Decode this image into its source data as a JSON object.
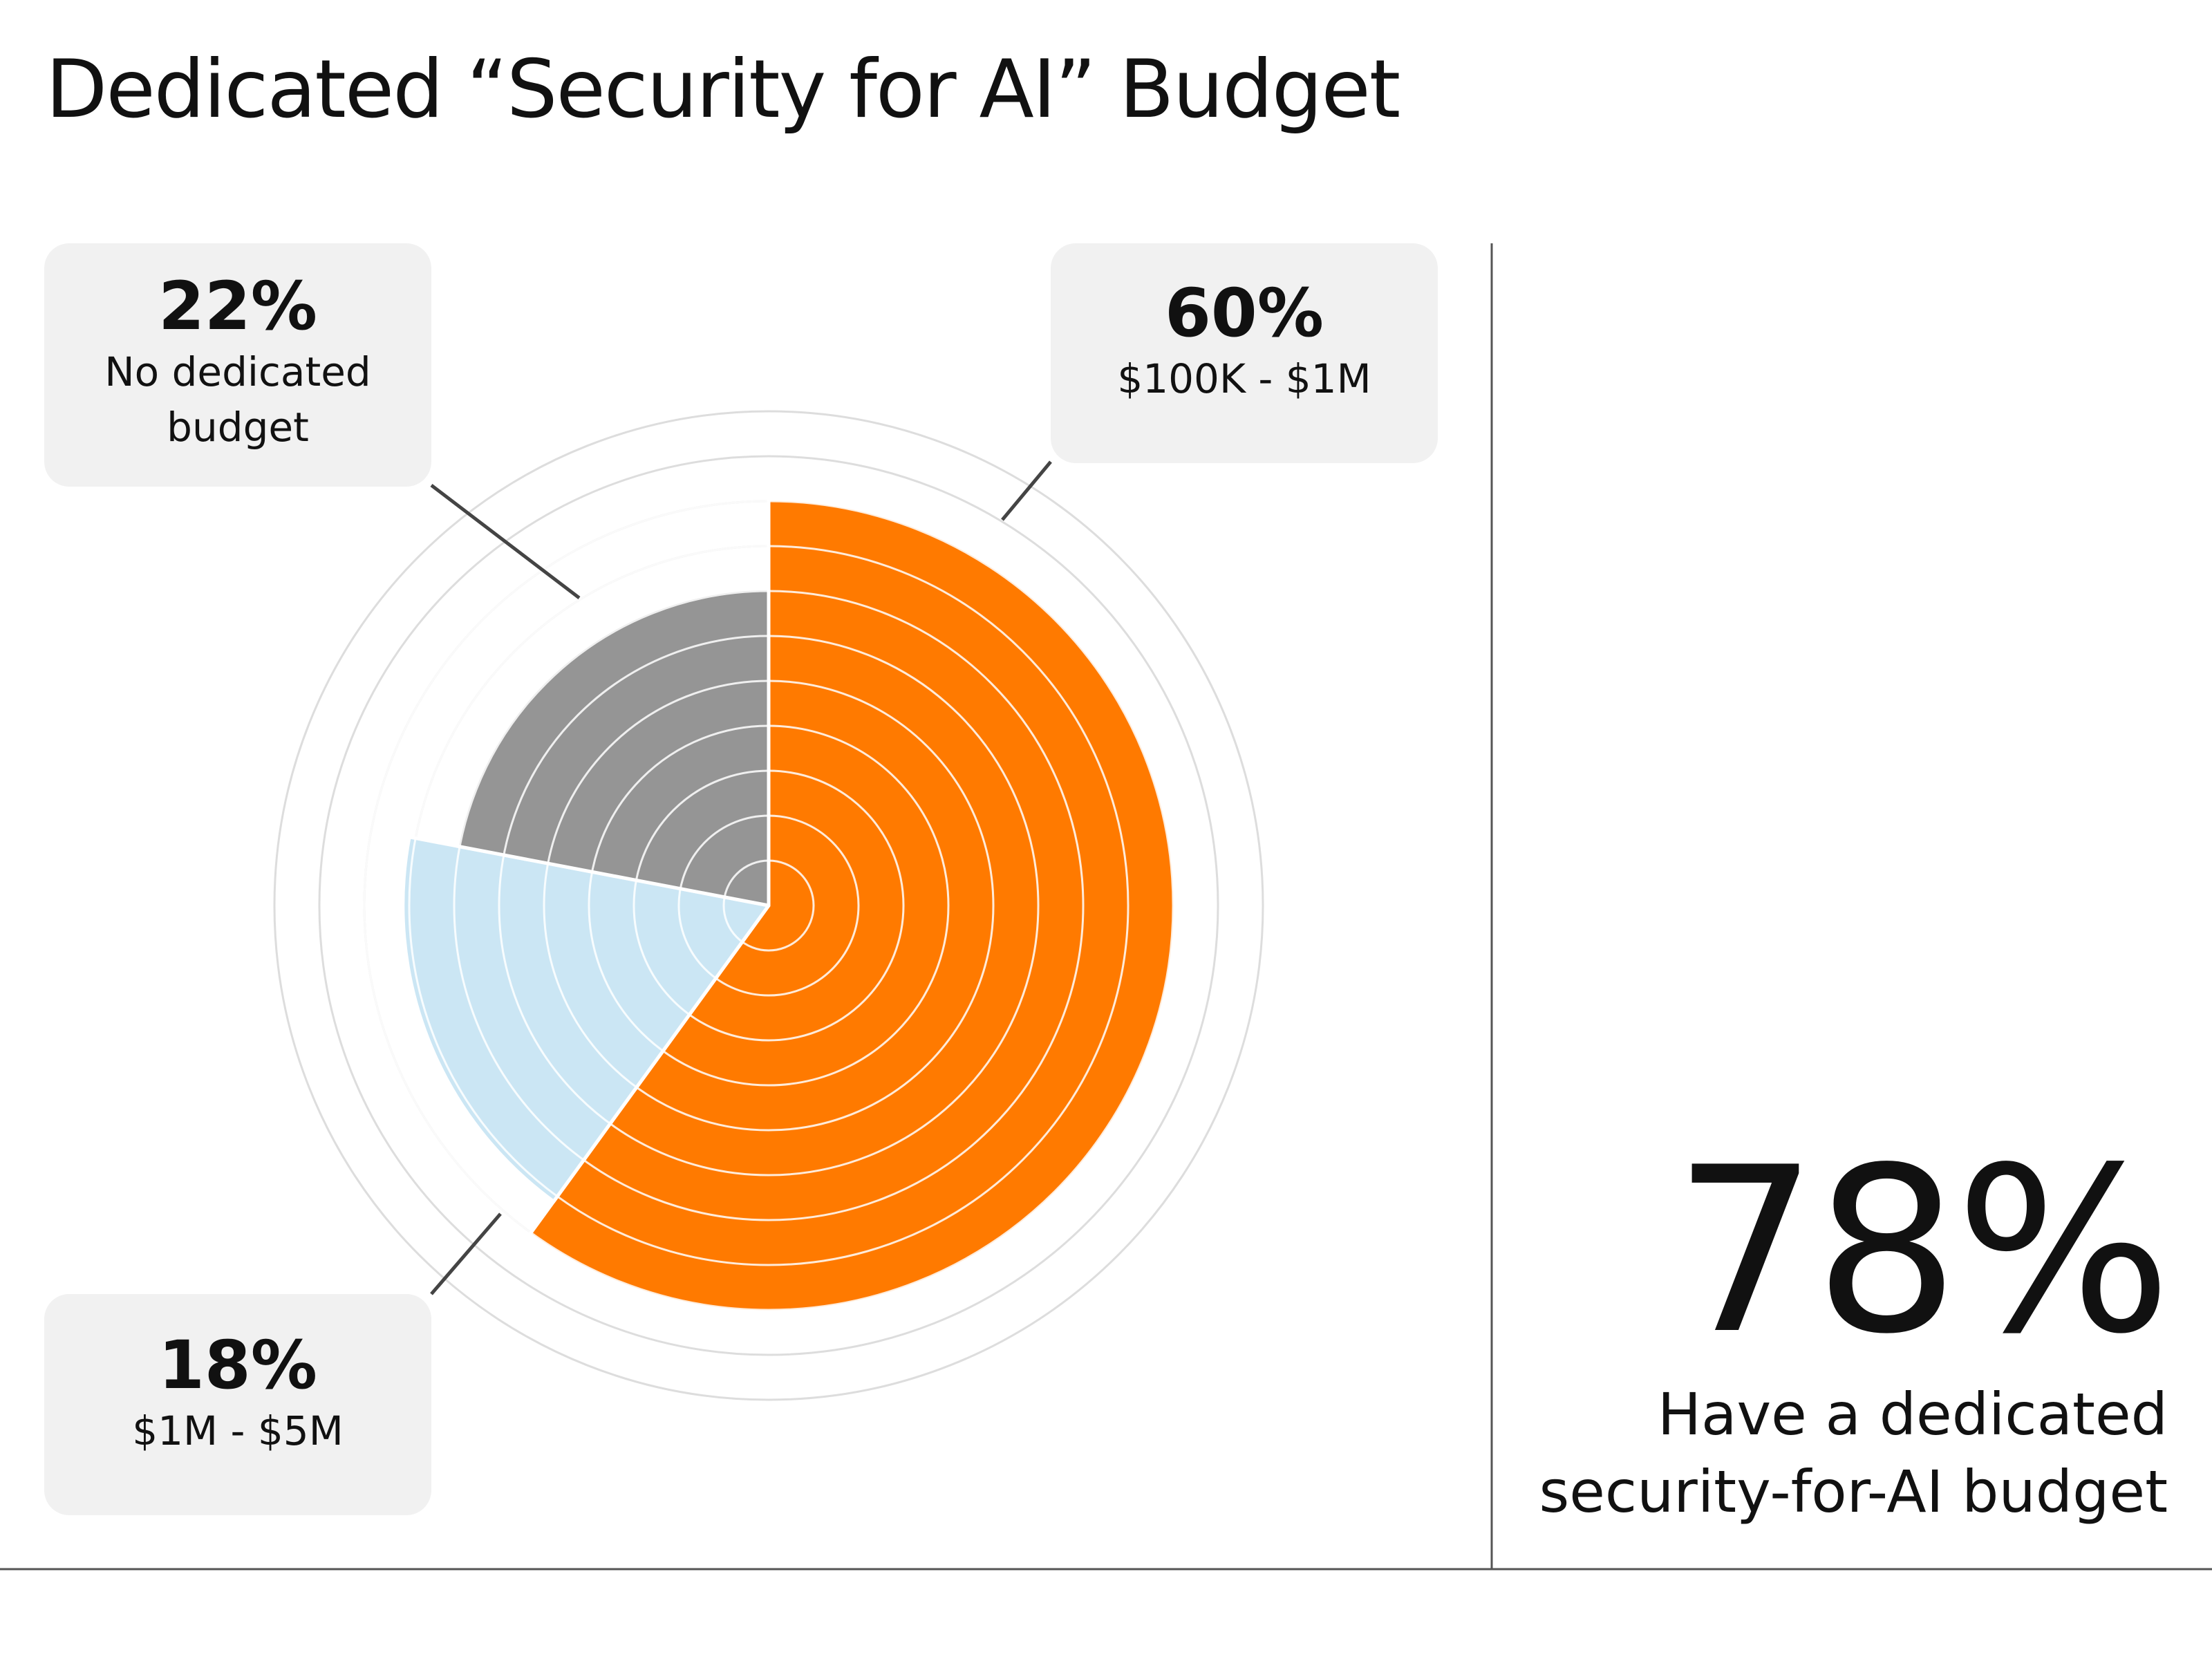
{
  "title": "Dedicated “Security for AI” Budget",
  "callouts": {
    "no_budget": {
      "pct": "22%",
      "label_line1": "No dedicated",
      "label_line2": "budget"
    },
    "range_100k_1m": {
      "pct": "60%",
      "label": "$100K - $1M"
    },
    "range_1m_5m": {
      "pct": "18%",
      "label": "$1M - $5M"
    }
  },
  "highlight": {
    "value": "78%",
    "caption_line1": "Have a dedicated",
    "caption_line2": "security-for-AI budget"
  },
  "chart_data": {
    "type": "pie",
    "variant": "polar-area",
    "title": "Dedicated “Security for AI” Budget",
    "slices": [
      {
        "label": "$100K - $1M",
        "value": 60,
        "color": "#ff7a00",
        "relative_radius": 1.0
      },
      {
        "label": "$1M - $5M",
        "value": 18,
        "color": "#cbe6f4",
        "relative_radius": 0.9
      },
      {
        "label": "No dedicated budget",
        "value": 22,
        "color": "#959595",
        "relative_radius": 0.78
      }
    ],
    "start_angle_deg": 0,
    "direction": "clockwise",
    "grid": true
  },
  "colors": {
    "accent": "#ff7a00",
    "light_blue": "#cbe6f4",
    "gray": "#959595",
    "callout_bg": "#f1f1f1",
    "divider": "#555555"
  }
}
